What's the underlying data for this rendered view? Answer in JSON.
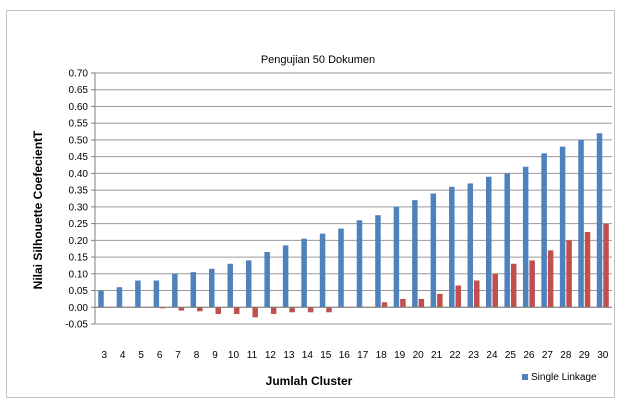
{
  "chart_data": {
    "type": "bar",
    "title": "Pengujian 50 Dokumen",
    "xlabel": "Jumlah Cluster",
    "ylabel": "Nilai Silhouette CoefecientT",
    "ylim": [
      -0.05,
      0.7
    ],
    "ytick_step": 0.05,
    "yticks": [
      "-0.05",
      "0.00",
      "0.05",
      "0.10",
      "0.15",
      "0.20",
      "0.25",
      "0.30",
      "0.35",
      "0.40",
      "0.45",
      "0.50",
      "0.55",
      "0.60",
      "0.65",
      "0.70"
    ],
    "grid": true,
    "legend_position": "bottom-right",
    "categories": [
      "3",
      "4",
      "5",
      "6",
      "7",
      "8",
      "9",
      "10",
      "11",
      "12",
      "13",
      "14",
      "15",
      "16",
      "17",
      "18",
      "19",
      "20",
      "21",
      "22",
      "23",
      "24",
      "25",
      "26",
      "27",
      "28",
      "29",
      "30"
    ],
    "series": [
      {
        "name": "Single Linkage",
        "color": "#4f81bd",
        "values": [
          0.05,
          0.06,
          0.08,
          0.08,
          0.1,
          0.105,
          0.115,
          0.13,
          0.14,
          0.165,
          0.185,
          0.205,
          0.22,
          0.235,
          0.26,
          0.275,
          0.3,
          0.32,
          0.34,
          0.36,
          0.37,
          0.39,
          0.4,
          0.42,
          0.46,
          0.48,
          0.5,
          0.52
        ]
      },
      {
        "color": "#c0504d",
        "values": [
          0,
          0,
          0,
          -0.003,
          -0.01,
          -0.012,
          -0.02,
          -0.02,
          -0.03,
          -0.02,
          -0.015,
          -0.015,
          -0.015,
          0,
          0,
          0.015,
          0.025,
          0.025,
          0.04,
          0.065,
          0.08,
          0.1,
          0.13,
          0.14,
          0.17,
          0.2,
          0.225,
          0.25
        ]
      }
    ]
  }
}
